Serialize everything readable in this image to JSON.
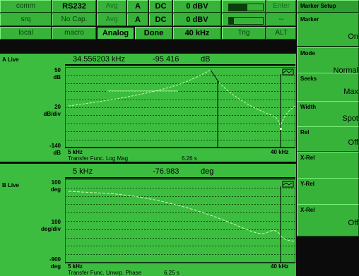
{
  "status": {
    "row1": {
      "comm": "comm",
      "rs232": "RS232",
      "avg": "Avg",
      "a": "A",
      "dc": "DC",
      "level": "0 dBV",
      "meter_level": 0.55,
      "enter": "Enter"
    },
    "row2": {
      "srq": "srq",
      "nocap": "No Cap.",
      "avg": "Avg",
      "a": "A",
      "dc": "DC",
      "level": "0 dBV",
      "meter_level": 0.15,
      "dash": "--"
    },
    "row3": {
      "local": "local",
      "macro": "macro",
      "analog": "Analog",
      "done": "Done",
      "span": "40 kHz",
      "trig": "Trig",
      "alt": "ALT"
    }
  },
  "trace_a": {
    "name": "A Live",
    "marker_freq": "34.556203 kHz",
    "marker_value": "-95.416",
    "marker_unit": "dB",
    "top_value": "50",
    "top_unit": "dB",
    "div_value": "20",
    "div_unit": "dB/div",
    "bottom_value": "-140",
    "bottom_unit": "dB",
    "start_freq": "5 kHz",
    "stop_freq": "40 kHz",
    "measurement": "Transfer Func. Log Mag",
    "time": "6.26 s"
  },
  "trace_b": {
    "name": "B Live",
    "marker_freq": "5 kHz",
    "marker_value": "-76.983",
    "marker_unit": "deg",
    "top_value": "100",
    "top_unit": "deg",
    "div_value": "100",
    "div_unit": "deg/div",
    "bottom_value": "-900",
    "bottom_unit": "deg",
    "start_freq": "5 kHz",
    "stop_freq": "40 kHz",
    "measurement": "Transfer Func. Unwrp. Phase",
    "time": "6.25 s"
  },
  "softkeys": {
    "title": "Marker Setup",
    "items": [
      {
        "label": "Marker",
        "value": "On"
      },
      {
        "label": "Mode",
        "value": "Normal"
      },
      {
        "label": "Seeks",
        "value": "Max"
      },
      {
        "label": "Width",
        "value": "Spot"
      },
      {
        "label": "Rel",
        "value": "Off"
      },
      {
        "label": "X-Rel",
        "value": ""
      },
      {
        "label": "Y-Rel",
        "value": ""
      },
      {
        "label": "X-Rel",
        "value": "Off"
      }
    ]
  },
  "colors": {
    "screen_green": "#3dbd40",
    "button_green": "#37b33a",
    "trace_color": "#c8ffb0"
  }
}
